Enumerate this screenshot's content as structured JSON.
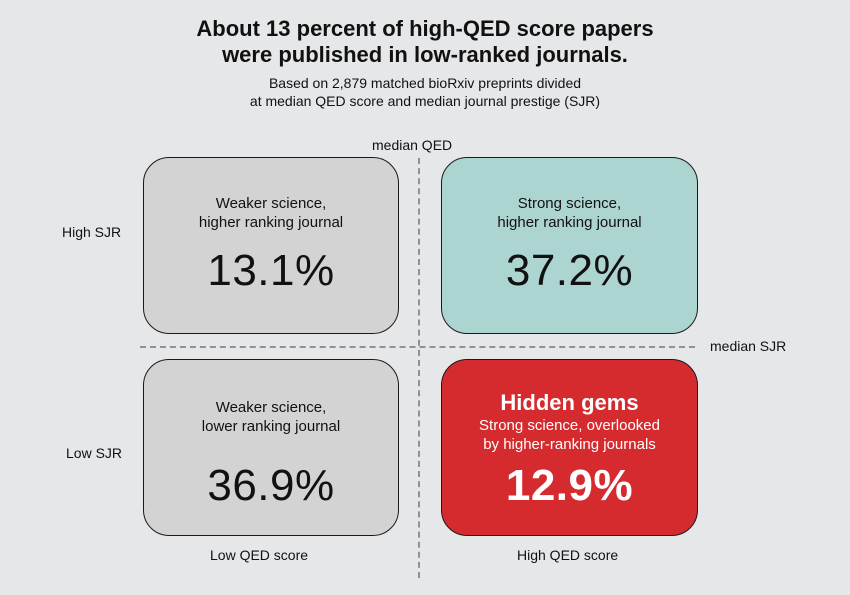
{
  "title": {
    "line1": "About 13 percent of high-QED score papers",
    "line2": "were published in low-ranked journals."
  },
  "subtitle": {
    "line1": "Based on 2,879 matched bioRxiv preprints divided",
    "line2": "at median QED score and median journal prestige (SJR)"
  },
  "axes": {
    "median_qed": "median QED",
    "median_sjr": "median SJR",
    "high_sjr": "High SJR",
    "low_sjr": "Low SJR",
    "low_qed": "Low QED score",
    "high_qed": "High QED score"
  },
  "quadrants": {
    "top_left": {
      "label_line1": "Weaker science,",
      "label_line2": "higher ranking journal",
      "value": "13.1%",
      "color": "#d3d3d3"
    },
    "top_right": {
      "label_line1": "Strong science,",
      "label_line2": "higher ranking journal",
      "value": "37.2%",
      "color": "#acd4d1"
    },
    "bottom_left": {
      "label_line1": "Weaker science,",
      "label_line2": "lower ranking journal",
      "value": "36.9%",
      "color": "#d3d3d3"
    },
    "bottom_right": {
      "heading": "Hidden gems",
      "label_line1": "Strong science, overlooked",
      "label_line2": "by higher-ranking journals",
      "value": "12.9%",
      "color": "#d52b2f"
    }
  },
  "colors": {
    "background": "#e6e7e8",
    "divider": "#8f9194"
  }
}
